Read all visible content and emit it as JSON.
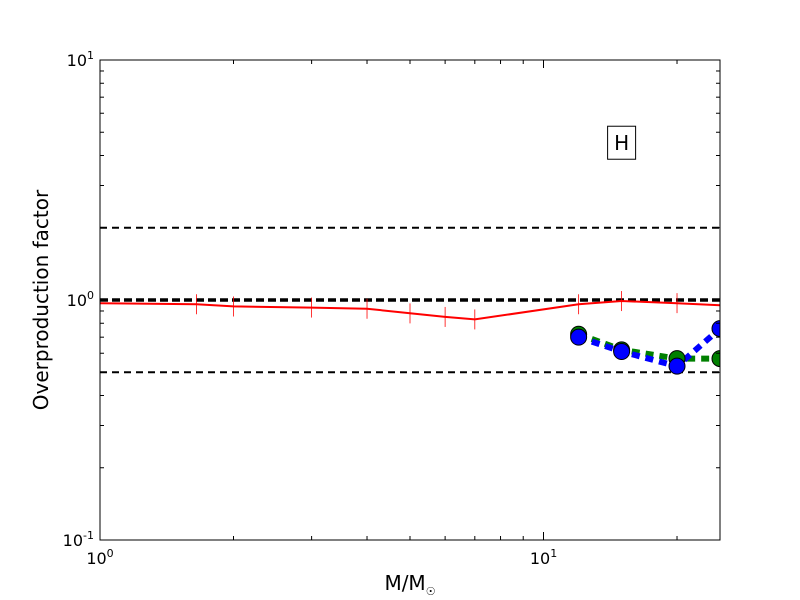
{
  "chart_data": {
    "type": "line",
    "xlabel": "M/M",
    "xlabel_sub": "☉",
    "ylabel": "Overproduction factor",
    "x_scale": "log",
    "y_scale": "log",
    "xlim": [
      1,
      25
    ],
    "ylim": [
      0.1,
      10
    ],
    "x_ticks": [
      {
        "value": 1,
        "base": "10",
        "exp": "0"
      },
      {
        "value": 10,
        "base": "10",
        "exp": "1"
      }
    ],
    "y_ticks": [
      {
        "value": 0.1,
        "base": "10",
        "exp": "-1"
      },
      {
        "value": 1,
        "base": "10",
        "exp": "0"
      },
      {
        "value": 10,
        "base": "10",
        "exp": "1"
      }
    ],
    "annotation": {
      "text": "H",
      "x": 15,
      "y": 4.5
    },
    "reference_lines": [
      {
        "y": 2.0,
        "color": "#000000",
        "style": "dashed"
      },
      {
        "y": 1.0,
        "color": "#000000",
        "style": "dashed-bold"
      },
      {
        "y": 0.5,
        "color": "#000000",
        "style": "dashed"
      }
    ],
    "series": [
      {
        "color": "#ff0000",
        "style": "solid",
        "marker": "vline",
        "x": [
          1.0,
          1.65,
          2.0,
          3.0,
          4.0,
          5.0,
          6.0,
          7.0,
          12.0,
          15.0,
          20.0,
          25.0
        ],
        "y": [
          0.97,
          0.96,
          0.94,
          0.93,
          0.92,
          0.88,
          0.85,
          0.83,
          0.96,
          0.99,
          0.97,
          0.95
        ]
      },
      {
        "color": "#008000",
        "style": "dotted-thick",
        "marker": "circle",
        "x": [
          12.0,
          15.0,
          20.0,
          25.0
        ],
        "y": [
          0.72,
          0.62,
          0.57,
          0.57
        ]
      },
      {
        "color": "#0000ff",
        "style": "dotted-thick",
        "marker": "circle",
        "x": [
          12.0,
          15.0,
          20.0,
          25.0
        ],
        "y": [
          0.7,
          0.61,
          0.53,
          0.76
        ]
      }
    ]
  }
}
